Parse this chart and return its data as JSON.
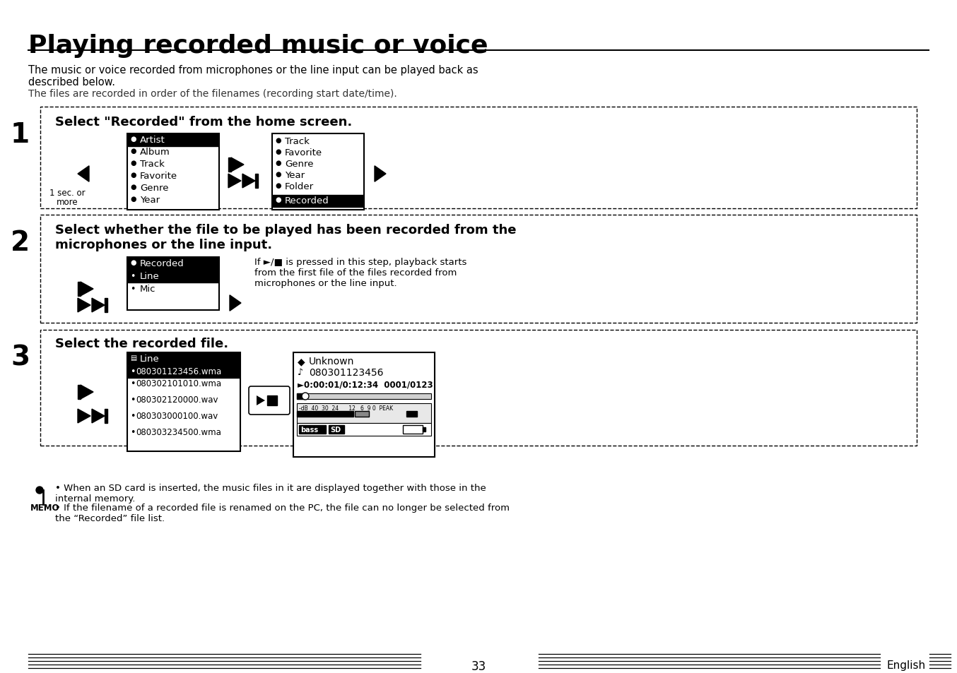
{
  "title": "Playing recorded music or voice",
  "bg_color": "#ffffff",
  "text_color": "#000000",
  "page_number": "33",
  "page_label": "English",
  "intro_text1": "The music or voice recorded from microphones or the line input can be played back as\ndescribed below.",
  "intro_text2": "The files are recorded in order of the filenames (recording start date/time).",
  "step1_num": "1",
  "step1_title": "Select \"Recorded\" from the home screen.",
  "step2_num": "2",
  "step2_title": "Select whether the file to be played has been recorded from the\nmicrophones or the line input.",
  "step3_num": "3",
  "step3_title": "Select the recorded file.",
  "step2_note": "If ►/■ is pressed in this step, playback starts\nfrom the first file of the files recorded from\nmicrophones or the line input.",
  "menu1_items": [
    "Artist",
    "Album",
    "Track",
    "Favorite",
    "Genre",
    "Year"
  ],
  "menu2_items": [
    "Track",
    "Favorite",
    "Genre",
    "Year",
    "Folder",
    "Recorded"
  ],
  "menu3_items": [
    "Line",
    "080301123456.wma",
    "080302101010.wma",
    "080302120000.wav",
    "080303000100.wav",
    "080303234500.wma"
  ],
  "memo_bullet1": "When an SD card is inserted, the music files in it are displayed together with those in the\ninternal memory.",
  "memo_bullet2": "If the filename of a recorded file is renamed on the PC, the file can no longer be selected from\nthe “Recorded” file list."
}
